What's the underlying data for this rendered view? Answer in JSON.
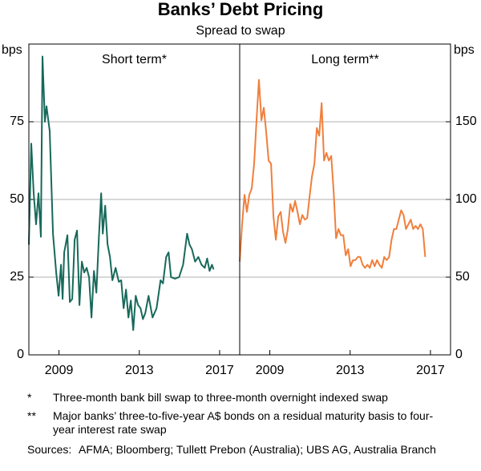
{
  "title": "Banks’ Debt Pricing",
  "subtitle": "Spread to swap",
  "chart_data": [
    {
      "type": "line",
      "title": "Short term*",
      "ylabel": "bps",
      "axis_side": "left",
      "xlim": [
        2007.5,
        2018
      ],
      "xticks": [
        2009,
        2013,
        2017
      ],
      "ylim": [
        0,
        100
      ],
      "yticks": [
        0,
        25,
        50,
        75
      ],
      "grid": true,
      "x": [
        2007.5,
        2007.62,
        2007.74,
        2007.86,
        2007.98,
        2008.1,
        2008.18,
        2008.3,
        2008.38,
        2008.54,
        2008.7,
        2008.86,
        2008.98,
        2009.1,
        2009.18,
        2009.26,
        2009.42,
        2009.54,
        2009.66,
        2009.78,
        2009.9,
        2010.02,
        2010.14,
        2010.26,
        2010.38,
        2010.5,
        2010.62,
        2010.74,
        2010.86,
        2010.98,
        2011.1,
        2011.18,
        2011.3,
        2011.42,
        2011.54,
        2011.66,
        2011.82,
        2011.98,
        2012.1,
        2012.22,
        2012.34,
        2012.46,
        2012.58,
        2012.7,
        2012.82,
        2012.94,
        2013.06,
        2013.18,
        2013.3,
        2013.46,
        2013.66,
        2013.86,
        2014.06,
        2014.18,
        2014.34,
        2014.46,
        2014.58,
        2014.78,
        2014.98,
        2015.18,
        2015.38,
        2015.5,
        2015.62,
        2015.78,
        2015.94,
        2016.1,
        2016.26,
        2016.38,
        2016.5,
        2016.62,
        2016.7
      ],
      "series": [
        {
          "color": "#17695a",
          "values": [
            35.5,
            68,
            52,
            42,
            52,
            38,
            96,
            75,
            80,
            72,
            39,
            26.5,
            19,
            29,
            18,
            33,
            38.5,
            17,
            18,
            37,
            40,
            16,
            30,
            26.5,
            28,
            25,
            12,
            27,
            20,
            37,
            52,
            39,
            48,
            35.5,
            31.5,
            24,
            28,
            23.5,
            24,
            15,
            21,
            12,
            17.5,
            8,
            19,
            16,
            15,
            11.5,
            13.5,
            19,
            12,
            15,
            24,
            23,
            31.5,
            33,
            25,
            24.5,
            25,
            29,
            39,
            35.5,
            34,
            30,
            31.5,
            29,
            28,
            31,
            27,
            29,
            27.5
          ]
        }
      ]
    },
    {
      "type": "line",
      "title": "Long term**",
      "ylabel": "bps",
      "axis_side": "right",
      "xlim": [
        2007.5,
        2018
      ],
      "xticks": [
        2009,
        2013,
        2017
      ],
      "ylim": [
        0,
        200
      ],
      "yticks": [
        0,
        50,
        100,
        150
      ],
      "grid": true,
      "x": [
        2007.5,
        2007.62,
        2007.74,
        2007.86,
        2007.98,
        2008.1,
        2008.22,
        2008.34,
        2008.46,
        2008.58,
        2008.7,
        2008.82,
        2008.94,
        2009.06,
        2009.18,
        2009.3,
        2009.42,
        2009.54,
        2009.66,
        2009.78,
        2009.9,
        2010.02,
        2010.14,
        2010.26,
        2010.38,
        2010.5,
        2010.62,
        2010.74,
        2010.86,
        2010.98,
        2011.1,
        2011.22,
        2011.34,
        2011.46,
        2011.58,
        2011.7,
        2011.82,
        2011.94,
        2012.06,
        2012.18,
        2012.3,
        2012.42,
        2012.54,
        2012.66,
        2012.78,
        2012.9,
        2013.02,
        2013.14,
        2013.26,
        2013.38,
        2013.5,
        2013.62,
        2013.74,
        2013.86,
        2013.98,
        2014.1,
        2014.22,
        2014.34,
        2014.46,
        2014.58,
        2014.7,
        2014.82,
        2014.94,
        2015.06,
        2015.18,
        2015.3,
        2015.42,
        2015.54,
        2015.66,
        2015.78,
        2015.9,
        2016.02,
        2016.14,
        2016.26,
        2016.38,
        2016.5,
        2016.62,
        2016.74
      ],
      "series": [
        {
          "color": "#f07f3c",
          "values": [
            60,
            84,
            103,
            92,
            103,
            107,
            123,
            151,
            177,
            151,
            159,
            143,
            125,
            123,
            89,
            74,
            89,
            92,
            79,
            72,
            81,
            97,
            92,
            99,
            92,
            84,
            90,
            87,
            88,
            102,
            115,
            123,
            146,
            141,
            162,
            125,
            130,
            125,
            128,
            105,
            75,
            81,
            77,
            77,
            64,
            68,
            57,
            61,
            61,
            63,
            63,
            58,
            56,
            58,
            56,
            61,
            57,
            61,
            58,
            56,
            63,
            61,
            63,
            74,
            81,
            81,
            87,
            93,
            90,
            81,
            84,
            87,
            81,
            83,
            81,
            84,
            81,
            63
          ]
        }
      ]
    }
  ],
  "notes": [
    {
      "marker": "*",
      "text": "Three-month bank bill swap to three-month overnight indexed swap"
    },
    {
      "marker": "**",
      "text": "Major banks’ three-to-five-year A$ bonds on a residual maturity basis to four-year interest rate swap"
    }
  ],
  "sources": {
    "label": "Sources:",
    "text": "AFMA; Bloomberg; Tullett Prebon (Australia); UBS AG, Australia Branch"
  }
}
